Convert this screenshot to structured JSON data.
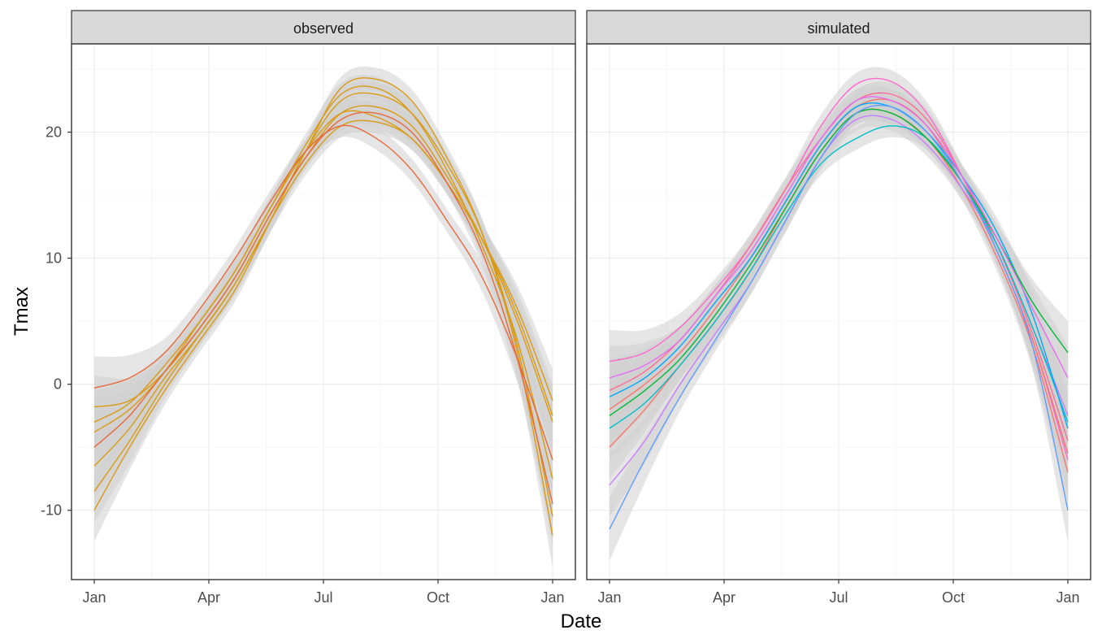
{
  "chart_data": {
    "type": "line",
    "xlabel": "Date",
    "ylabel": "Tmax",
    "x_ticks": [
      "Jan",
      "Apr",
      "Jul",
      "Oct",
      "Jan"
    ],
    "x_tick_dates": [
      "2000-01-01",
      "2000-04-01",
      "2000-07-01",
      "2000-10-01",
      "2001-01-01"
    ],
    "y_ticks": [
      -10,
      0,
      10,
      20
    ],
    "ylim": [
      -15.5,
      27
    ],
    "grid": true,
    "smoothed_with_confidence_band": true,
    "band_color": "#d0d0d0",
    "panels": [
      {
        "strip_label": "observed",
        "series": [
          {
            "color": "#d99a14",
            "values": [
              -1.8,
              -1.3,
              1.0,
              4.5,
              8.5,
              13.5,
              18.0,
              21.5,
              22.0,
              20.5,
              16.5,
              11.5,
              5.0,
              -3.0
            ]
          },
          {
            "color": "#d99a14",
            "values": [
              -6.5,
              -3.5,
              0.5,
              4.0,
              8.0,
              13.0,
              17.5,
              20.5,
              20.8,
              19.5,
              16.0,
              11.5,
              5.5,
              -2.5
            ]
          },
          {
            "color": "#d99a14",
            "values": [
              -3.8,
              -2.0,
              1.0,
              5.0,
              9.0,
              14.0,
              19.0,
              23.0,
              23.5,
              21.5,
              17.0,
              11.0,
              3.5,
              -7.5
            ]
          },
          {
            "color": "#d99a14",
            "values": [
              -8.5,
              -4.5,
              0.0,
              4.0,
              8.0,
              13.0,
              18.5,
              22.5,
              23.0,
              21.5,
              17.5,
              12.0,
              3.0,
              -10.5
            ]
          },
          {
            "color": "#d99a14",
            "values": [
              -10.0,
              -5.0,
              -0.5,
              3.5,
              7.5,
              13.0,
              18.5,
              23.5,
              24.2,
              22.5,
              18.0,
              12.0,
              2.5,
              -12.0
            ]
          },
          {
            "color": "#d99a14",
            "values": [
              -3.0,
              -1.5,
              1.5,
              5.0,
              9.0,
              14.0,
              18.5,
              21.5,
              21.2,
              19.5,
              16.0,
              11.5,
              6.0,
              -1.3
            ]
          },
          {
            "color": "#e8693a",
            "values": [
              -0.3,
              0.5,
              2.5,
              6.0,
              10.0,
              14.5,
              18.5,
              20.5,
              19.5,
              17.0,
              13.0,
              8.5,
              2.0,
              -6.0
            ]
          },
          {
            "color": "#e8693a",
            "values": [
              -5.0,
              -2.5,
              1.0,
              4.5,
              8.5,
              13.5,
              18.0,
              21.0,
              21.5,
              20.0,
              16.0,
              10.5,
              2.0,
              -9.5
            ]
          }
        ]
      },
      {
        "strip_label": "simulated",
        "series": [
          {
            "color": "#ff66cc",
            "values": [
              1.8,
              2.5,
              4.5,
              7.5,
              11.0,
              15.5,
              20.5,
              23.8,
              24.0,
              21.5,
              16.5,
              10.5,
              3.5,
              -6.0
            ]
          },
          {
            "color": "#f8766d",
            "values": [
              -2.0,
              0.0,
              2.5,
              6.0,
              10.0,
              14.5,
              19.0,
              22.0,
              22.5,
              20.5,
              16.0,
              10.5,
              3.5,
              -5.5
            ]
          },
          {
            "color": "#f8766d",
            "values": [
              -5.0,
              -2.0,
              1.5,
              5.0,
              9.0,
              14.0,
              18.5,
              21.5,
              21.5,
              19.5,
              15.5,
              10.0,
              3.0,
              -7.0
            ]
          },
          {
            "color": "#ff6c91",
            "values": [
              -0.5,
              1.0,
              3.5,
              7.0,
              11.0,
              15.5,
              19.5,
              22.5,
              23.0,
              21.0,
              16.5,
              11.0,
              4.0,
              -4.5
            ]
          },
          {
            "color": "#c77cff",
            "values": [
              -8.0,
              -4.5,
              0.0,
              4.0,
              8.0,
              13.0,
              18.0,
              21.0,
              21.0,
              19.0,
              15.5,
              11.0,
              4.5,
              -2.5
            ]
          },
          {
            "color": "#00bfc4",
            "values": [
              -3.5,
              -1.5,
              1.5,
              5.0,
              9.0,
              13.5,
              17.5,
              19.5,
              20.5,
              19.5,
              16.0,
              11.0,
              4.5,
              -3.0
            ]
          },
          {
            "color": "#00a9ff",
            "values": [
              -1.0,
              0.5,
              3.0,
              6.5,
              10.0,
              14.5,
              19.0,
              22.0,
              22.0,
              20.0,
              16.5,
              12.0,
              5.5,
              -3.5
            ]
          },
          {
            "color": "#00ba38",
            "values": [
              -2.5,
              -0.5,
              2.0,
              5.5,
              9.5,
              14.0,
              18.5,
              21.5,
              21.5,
              19.5,
              16.0,
              11.5,
              6.5,
              2.5
            ]
          },
          {
            "color": "#619cff",
            "values": [
              -11.5,
              -6.0,
              -1.0,
              3.5,
              8.0,
              13.0,
              18.0,
              21.5,
              22.0,
              20.0,
              16.0,
              10.5,
              3.0,
              -10.0
            ]
          },
          {
            "color": "#e76bf3",
            "values": [
              0.5,
              1.5,
              3.5,
              7.0,
              10.5,
              15.0,
              19.5,
              22.5,
              22.5,
              20.5,
              16.5,
              11.5,
              6.0,
              0.5
            ]
          }
        ]
      }
    ]
  }
}
